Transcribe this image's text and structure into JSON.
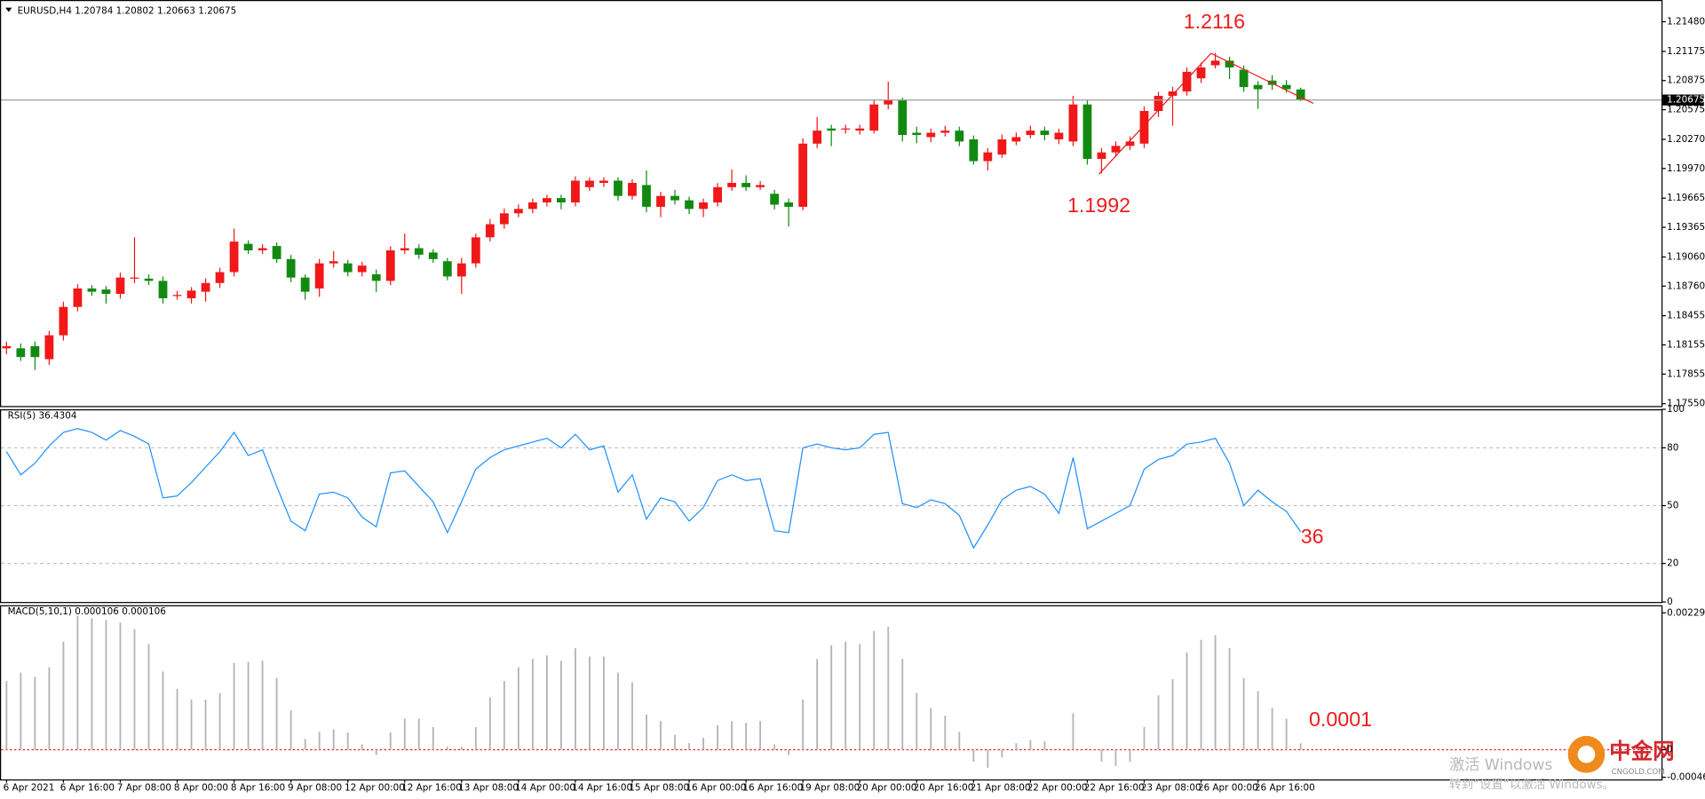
{
  "chart_data": [
    {
      "type": "candlestick",
      "title": "EURUSD,H4 1.20784 1.20802 1.20663 1.20675",
      "up_color": "#f01818",
      "down_color": "#128a12",
      "categories": [
        "6 Apr 2021",
        null,
        null,
        null,
        "6 Apr 16:00",
        null,
        null,
        null,
        "7 Apr 08:00",
        null,
        null,
        null,
        "8 Apr 00:00",
        null,
        null,
        null,
        "8 Apr 16:00",
        null,
        null,
        null,
        "9 Apr 08:00",
        null,
        null,
        null,
        "12 Apr 00:00",
        null,
        null,
        null,
        "12 Apr 16:00",
        null,
        null,
        null,
        "13 Apr 08:00",
        null,
        null,
        null,
        "14 Apr 00:00",
        null,
        null,
        null,
        "14 Apr 16:00",
        null,
        null,
        null,
        "15 Apr 08:00",
        null,
        null,
        null,
        "16 Apr 00:00",
        null,
        null,
        null,
        "16 Apr 16:00",
        null,
        null,
        null,
        "19 Apr 08:00",
        null,
        null,
        null,
        "20 Apr 00:00",
        null,
        null,
        null,
        "20 Apr 16:00",
        null,
        null,
        null,
        "21 Apr 08:00",
        null,
        null,
        null,
        "22 Apr 00:00",
        null,
        null,
        null,
        "22 Apr 16:00",
        null,
        null,
        null,
        "23 Apr 08:00",
        null,
        null,
        null,
        "26 Apr 00:00",
        null,
        null,
        null,
        "26 Apr 16:00",
        null,
        null,
        null
      ],
      "open": [
        1.1812,
        1.1812,
        1.18142,
        1.18008,
        1.18254,
        1.18546,
        1.18736,
        1.18725,
        1.1868,
        1.18837,
        1.18837,
        1.18814,
        1.18658,
        1.18635,
        1.18702,
        1.18792,
        1.18904,
        1.19195,
        1.19128,
        1.19173,
        1.19038,
        1.18848,
        1.18736,
        1.18994,
        1.18994,
        1.18904,
        1.18882,
        1.18814,
        1.19128,
        1.1915,
        1.19106,
        1.19016,
        1.18859,
        1.18994,
        1.19262,
        1.19397,
        1.19509,
        1.19554,
        1.19621,
        1.19666,
        1.19621,
        1.19778,
        1.19822,
        1.19845,
        1.19688,
        1.198,
        1.19576,
        1.19688,
        1.19643,
        1.19554,
        1.19621,
        1.19778,
        1.19822,
        1.19778,
        1.1971,
        1.19621,
        1.19576,
        1.20226,
        1.20382,
        1.20371,
        1.2036,
        1.2036,
        1.20629,
        1.20674,
        1.20338,
        1.20293,
        1.20338,
        1.2036,
        1.2027,
        1.20046,
        1.20114,
        1.20248,
        1.20315,
        1.2036,
        1.2027,
        1.20248,
        1.20629,
        1.20069,
        1.20136,
        1.20203,
        1.20226,
        1.20562,
        1.20718,
        1.20763,
        1.20898,
        1.21032,
        1.2108,
        1.20987,
        1.2083,
        1.20875,
        1.2083,
        1.20784
      ],
      "high": [
        1.1819,
        1.1817,
        1.1819,
        1.183,
        1.186,
        1.1878,
        1.1877,
        1.1876,
        1.189,
        1.19262,
        1.1888,
        1.1886,
        1.1871,
        1.1875,
        1.1884,
        1.1895,
        1.19352,
        1.1923,
        1.1919,
        1.1921,
        1.1908,
        1.1888,
        1.1904,
        1.1912,
        1.1903,
        1.1901,
        1.1893,
        1.1917,
        1.193,
        1.1919,
        1.1914,
        1.1905,
        1.1905,
        1.193,
        1.1945,
        1.1956,
        1.196,
        1.1966,
        1.197,
        1.197,
        1.1989,
        1.1988,
        1.1988,
        1.1988,
        1.1986,
        1.1995,
        1.1973,
        1.1975,
        1.1968,
        1.1966,
        1.1982,
        1.1996,
        1.199,
        1.1984,
        1.1975,
        1.1966,
        1.2028,
        1.205,
        1.2042,
        1.2042,
        1.2042,
        1.2068,
        1.20864,
        1.207,
        1.204,
        1.2038,
        1.2041,
        1.204,
        1.2031,
        1.2018,
        1.2032,
        1.2034,
        1.2041,
        1.204,
        1.2038,
        1.20718,
        1.2068,
        1.2018,
        1.2025,
        1.203,
        1.2061,
        1.2076,
        1.2081,
        1.2101,
        1.2106,
        1.2116,
        1.2112,
        1.2103,
        1.2087,
        1.2093,
        1.2088,
        1.20802
      ],
      "low": [
        1.1806,
        1.1799,
        1.17896,
        1.1795,
        1.182,
        1.185,
        1.1866,
        1.1858,
        1.1863,
        1.1879,
        1.1877,
        1.1858,
        1.1862,
        1.1858,
        1.186,
        1.1874,
        1.1886,
        1.1909,
        1.1909,
        1.19,
        1.188,
        1.1862,
        1.1865,
        1.1895,
        1.1886,
        1.1886,
        1.187,
        1.1877,
        1.1909,
        1.1904,
        1.19,
        1.1882,
        1.1868,
        1.1895,
        1.1922,
        1.1935,
        1.1947,
        1.1951,
        1.1958,
        1.1955,
        1.1958,
        1.1974,
        1.1978,
        1.1964,
        1.1965,
        1.1952,
        1.1947,
        1.196,
        1.195,
        1.1947,
        1.1958,
        1.1974,
        1.1974,
        1.1975,
        1.1955,
        1.19374,
        1.1954,
        1.2018,
        1.202,
        1.2033,
        1.2032,
        1.2033,
        1.2058,
        1.2025,
        1.2023,
        1.2024,
        1.203,
        1.202,
        1.2001,
        1.1995,
        1.2008,
        1.2021,
        1.2028,
        1.2026,
        1.2022,
        1.202,
        1.2001,
        1.1992,
        1.2009,
        1.2016,
        1.2018,
        1.205,
        1.2041,
        1.2072,
        1.2085,
        1.21,
        1.2089,
        1.2076,
        1.20584,
        1.2078,
        1.2075,
        1.20663
      ],
      "close": [
        1.18142,
        1.1803,
        1.1803,
        1.18254,
        1.18546,
        1.18736,
        1.18702,
        1.1868,
        1.18848,
        1.18848,
        1.18814,
        1.18635,
        1.18669,
        1.18714,
        1.18792,
        1.18904,
        1.19218,
        1.19128,
        1.1915,
        1.19038,
        1.18848,
        1.18702,
        1.18994,
        1.19016,
        1.18904,
        1.18971,
        1.18814,
        1.19128,
        1.1915,
        1.19083,
        1.19038,
        1.18859,
        1.18994,
        1.19262,
        1.19397,
        1.19509,
        1.19554,
        1.19621,
        1.19666,
        1.19621,
        1.19845,
        1.19845,
        1.19845,
        1.19688,
        1.19822,
        1.19576,
        1.19688,
        1.19643,
        1.19554,
        1.19621,
        1.19778,
        1.19822,
        1.19778,
        1.198,
        1.19598,
        1.19576,
        1.20226,
        1.2036,
        1.2036,
        1.20382,
        1.20382,
        1.20629,
        1.20674,
        1.20315,
        1.20315,
        1.20338,
        1.2036,
        1.20248,
        1.20046,
        1.20136,
        1.2027,
        1.20293,
        1.2036,
        1.20315,
        1.20338,
        1.20629,
        1.20069,
        1.20136,
        1.20203,
        1.20248,
        1.20562,
        1.20718,
        1.20763,
        1.20965,
        1.2101,
        1.2108,
        1.2101,
        1.20808,
        1.20786,
        1.2083,
        1.20786,
        1.20675
      ],
      "current_price": 1.20675,
      "ylim": [
        1.17526,
        1.21704
      ],
      "yticks": [
        {
          "value": 1.2148,
          "label": "1.21480"
        },
        {
          "value": 1.21175,
          "label": "1.21175"
        },
        {
          "value": 1.20875,
          "label": "1.20875"
        },
        {
          "value": 1.20575,
          "label": "1.20575"
        },
        {
          "value": 1.2027,
          "label": "1.20270"
        },
        {
          "value": 1.1997,
          "label": "1.19970"
        },
        {
          "value": 1.19665,
          "label": "1.19665"
        },
        {
          "value": 1.19365,
          "label": "1.19365"
        },
        {
          "value": 1.1906,
          "label": "1.19060"
        },
        {
          "value": 1.1876,
          "label": "1.18760"
        },
        {
          "value": 1.18455,
          "label": "1.18455"
        },
        {
          "value": 1.18155,
          "label": "1.18155"
        },
        {
          "value": 1.17855,
          "label": "1.17855"
        },
        {
          "value": 1.1755,
          "label": "1.17550"
        }
      ],
      "annotations": [
        "1.2116",
        "1.1992"
      ]
    },
    {
      "type": "line",
      "title": "RSI(5) 36.4304",
      "color": "#1e90ff",
      "values": [
        78,
        66,
        72,
        81,
        88,
        90,
        88,
        84,
        89,
        86,
        82,
        54,
        55,
        62,
        70,
        78,
        88,
        76,
        79,
        60,
        42,
        37,
        56,
        57,
        54,
        44,
        39,
        67,
        68,
        60,
        52,
        36,
        52,
        69,
        75,
        79,
        81,
        83,
        85,
        80,
        87,
        79,
        81,
        57,
        66,
        43,
        54,
        52,
        42,
        49,
        63,
        66,
        63,
        64,
        37,
        36,
        80,
        82,
        80,
        79,
        80,
        87,
        88,
        51,
        49,
        53,
        51,
        45,
        28,
        40,
        53,
        58,
        60,
        56,
        46,
        75,
        38,
        42,
        46,
        50,
        69,
        74,
        76,
        82,
        83,
        85,
        72,
        50,
        58,
        52,
        47,
        36.4304
      ],
      "ylim": [
        0,
        100
      ],
      "yticks": [
        0,
        20,
        50,
        80,
        100
      ],
      "grid": true,
      "annotations": [
        "36"
      ]
    },
    {
      "type": "bar",
      "title": "MACD(5,10,1) 0.000106 0.000106",
      "color": "#b4b4b4",
      "baseline_color": "#e02020",
      "values": [
        0.00115,
        0.00129,
        0.00122,
        0.00138,
        0.00181,
        0.00224,
        0.0022,
        0.00217,
        0.00213,
        0.00202,
        0.00177,
        0.00131,
        0.00102,
        0.00084,
        0.00084,
        0.00095,
        0.00145,
        0.00147,
        0.00149,
        0.0012,
        0.00066,
        0.00018,
        0.0003,
        0.00034,
        0.00029,
        9e-05,
        -9e-05,
        0.00029,
        0.00052,
        0.00052,
        0.00038,
        5e-05,
        5e-05,
        0.00038,
        0.00088,
        0.00115,
        0.00138,
        0.00152,
        0.00158,
        0.00149,
        0.0017,
        0.00156,
        0.00156,
        0.00129,
        0.00113,
        0.00059,
        0.00048,
        0.00025,
        0.00011,
        0.0002,
        0.00041,
        0.00048,
        0.00045,
        0.00048,
        9e-05,
        -9e-05,
        0.00084,
        0.00152,
        0.00175,
        0.00181,
        0.00177,
        0.00199,
        0.00206,
        0.00152,
        0.00095,
        0.0007,
        0.00057,
        0.0003,
        -0.0002,
        -0.0003,
        -0.00013,
        0.00011,
        0.00016,
        0.00014,
        2e-05,
        0.00061,
        2e-05,
        -0.0002,
        -0.00027,
        -0.0002,
        0.00038,
        0.00091,
        0.00118,
        0.00163,
        0.00184,
        0.00192,
        0.0017,
        0.0012,
        0.00098,
        0.0007,
        0.00052,
        0.000106
      ],
      "ylim": [
        -0.00046,
        0.002291
      ],
      "yticks": [
        0.002291,
        0,
        -0.00046
      ],
      "annotations": [
        "0.0001"
      ]
    }
  ],
  "watermark": {
    "line1": "激活 Windows",
    "line2": "转到“设置”以激活 Windows。"
  },
  "logo": {
    "name": "中金网",
    "site": "CNGOLD.COM"
  }
}
